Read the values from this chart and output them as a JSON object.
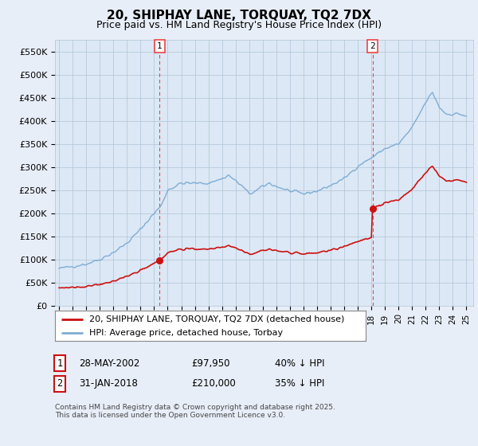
{
  "title": "20, SHIPHAY LANE, TORQUAY, TQ2 7DX",
  "subtitle": "Price paid vs. HM Land Registry's House Price Index (HPI)",
  "ylim": [
    0,
    575000
  ],
  "yticks": [
    0,
    50000,
    100000,
    150000,
    200000,
    250000,
    300000,
    350000,
    400000,
    450000,
    500000,
    550000
  ],
  "ytick_labels": [
    "£0",
    "£50K",
    "£100K",
    "£150K",
    "£200K",
    "£250K",
    "£300K",
    "£350K",
    "£400K",
    "£450K",
    "£500K",
    "£550K"
  ],
  "hpi_color": "#7eadd4",
  "price_color": "#cc1111",
  "vline_color": "#ee4444",
  "marker1_date": 2002.41,
  "marker1_price": 97950,
  "marker2_date": 2018.08,
  "marker2_price": 210000,
  "legend_label_price": "20, SHIPHAY LANE, TORQUAY, TQ2 7DX (detached house)",
  "legend_label_hpi": "HPI: Average price, detached house, Torbay",
  "table_rows": [
    [
      "1",
      "28-MAY-2002",
      "£97,950",
      "40% ↓ HPI"
    ],
    [
      "2",
      "31-JAN-2018",
      "£210,000",
      "35% ↓ HPI"
    ]
  ],
  "footnote": "Contains HM Land Registry data © Crown copyright and database right 2025.\nThis data is licensed under the Open Government Licence v3.0.",
  "bg_color": "#e8eef8",
  "plot_bg_color": "#dce8f5",
  "grid_color": "#b0c4d8",
  "legend_bg": "#ffffff"
}
